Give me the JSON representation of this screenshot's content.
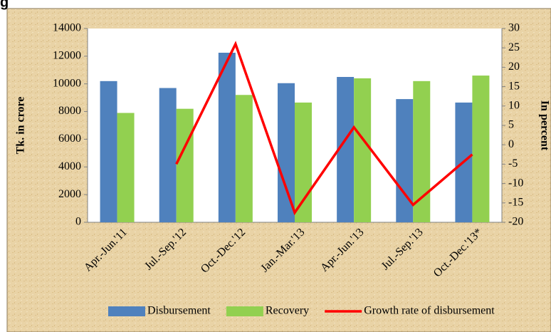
{
  "chart_data": {
    "type": "bar_line",
    "title": "g",
    "categories": [
      "Apr.-Jun.'11",
      "Jul.-Sep.'12",
      "Oct.-Dec.'12",
      "Jan.-Mar.'13",
      "Apr.-Jun.'13",
      "Jul.-Sep.'13",
      "Oct.-Dec.'13*"
    ],
    "series": [
      {
        "name": "Disbursement",
        "type": "bar",
        "color": "#4f81bd",
        "values": [
          10200,
          9700,
          12250,
          10050,
          10500,
          8900,
          8650
        ]
      },
      {
        "name": "Recovery",
        "type": "bar",
        "color": "#92d050",
        "values": [
          7900,
          8200,
          9200,
          8650,
          10400,
          10200,
          10600
        ]
      },
      {
        "name": "Growth rate of disbursement",
        "type": "line",
        "axis": "y2",
        "color": "#ff0000",
        "values": [
          null,
          -5,
          26,
          -17.5,
          4.5,
          -15.5,
          -2.5
        ]
      }
    ],
    "ylabel": "Tk. in crore",
    "y2label": "In percent",
    "ylim": [
      0,
      14000
    ],
    "yticks": [
      0,
      2000,
      4000,
      6000,
      8000,
      10000,
      12000,
      14000
    ],
    "y2lim": [
      -20,
      30
    ],
    "y2ticks": [
      -20,
      -15,
      -10,
      -5,
      0,
      5,
      10,
      15,
      20,
      25,
      30
    ],
    "legend": "bottom"
  }
}
